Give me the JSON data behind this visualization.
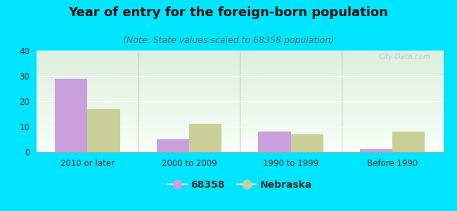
{
  "title": "Year of entry for the foreign-born population",
  "subtitle": "(Note: State values scaled to 68358 population)",
  "categories": [
    "2010 or later",
    "2000 to 2009",
    "1990 to 1999",
    "Before 1990"
  ],
  "series1_label": "68358",
  "series2_label": "Nebraska",
  "series1_values": [
    29,
    5,
    8,
    1
  ],
  "series2_values": [
    17,
    11,
    7,
    8
  ],
  "series1_color": "#c9a0dc",
  "series2_color": "#c8d098",
  "ylim": [
    0,
    40
  ],
  "yticks": [
    0,
    10,
    20,
    30,
    40
  ],
  "bg_color": "#00e5ff",
  "plot_bg_top": "#ddeedd",
  "plot_bg_bottom": "#f8fff8",
  "title_fontsize": 13,
  "subtitle_fontsize": 9,
  "tick_fontsize": 8.5,
  "legend_fontsize": 10,
  "bar_width": 0.32,
  "watermark": "City-Data.com"
}
